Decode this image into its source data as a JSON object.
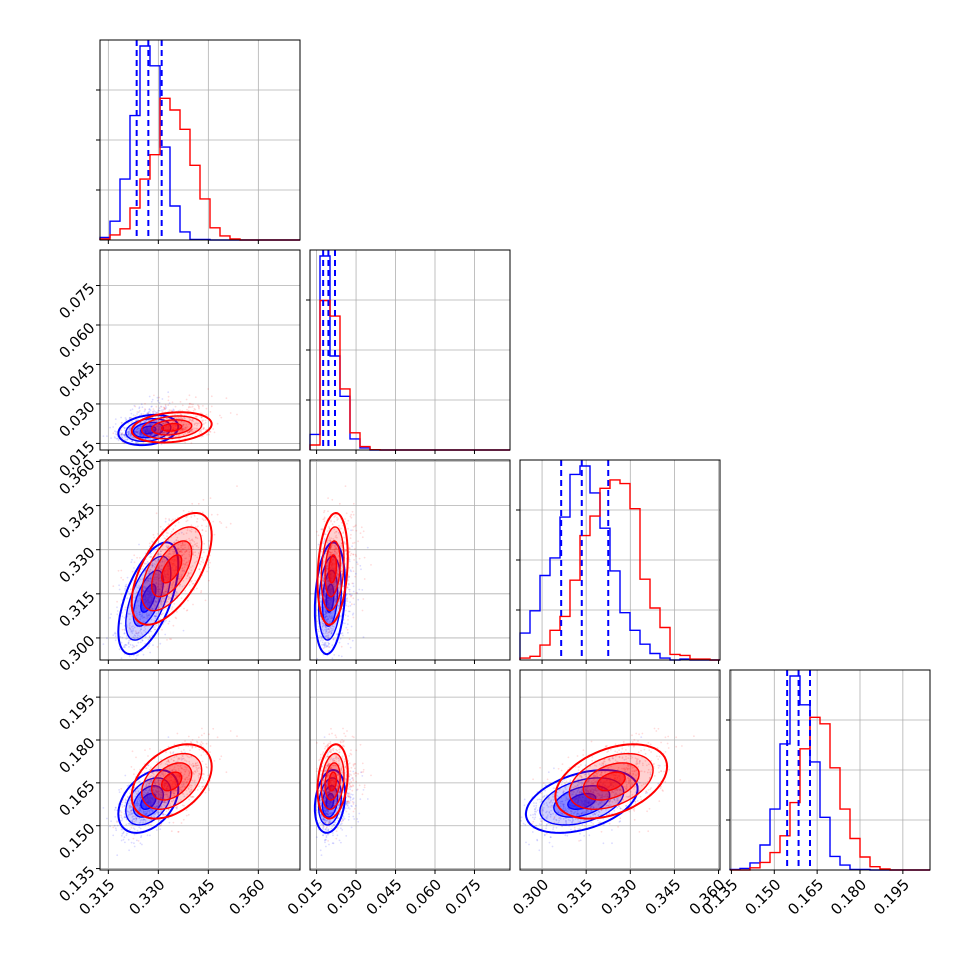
{
  "chart_data": {
    "type": "corner",
    "parameters": 4,
    "series": [
      {
        "name": "",
        "color": "#0000ff",
        "means": [
          0.327,
          0.0195,
          0.3135,
          0.1585
        ],
        "sigmas": [
          0.0045,
          0.0025,
          0.0095,
          0.0055
        ],
        "correlations": {
          "1-0": 0.25,
          "2-0": 0.6,
          "2-1": 0.25,
          "3-0": 0.4,
          "3-1": 0.2,
          "3-2": 0.4
        },
        "quantiles": [
          [
            0.3235,
            0.327,
            0.331
          ],
          [
            0.0175,
            0.0195,
            0.022
          ],
          [
            0.3065,
            0.3135,
            0.3225
          ],
          [
            0.1545,
            0.1585,
            0.1625
          ]
        ]
      },
      {
        "name": "",
        "color": "#ff0000",
        "means": [
          0.334,
          0.0205,
          0.3235,
          0.1655
        ],
        "sigmas": [
          0.006,
          0.0025,
          0.0095,
          0.0065
        ],
        "correlations": {
          "1-0": 0.25,
          "2-0": 0.6,
          "2-1": 0.25,
          "3-0": 0.4,
          "3-1": 0.2,
          "3-2": 0.4
        },
        "quantiles": []
      }
    ],
    "axes": [
      {
        "range": [
          0.3125,
          0.3725
        ],
        "ticks": [
          "0.315",
          "0.330",
          "0.345",
          "0.360"
        ],
        "tick_values": [
          0.315,
          0.33,
          0.345,
          0.36
        ]
      },
      {
        "range": [
          0.0125,
          0.0885
        ],
        "ticks": [
          "0.015",
          "0.030",
          "0.045",
          "0.060",
          "0.075"
        ],
        "tick_values": [
          0.015,
          0.03,
          0.045,
          0.06,
          0.075
        ]
      },
      {
        "range": [
          0.2925,
          0.3605
        ],
        "ticks": [
          "0.300",
          "0.315",
          "0.330",
          "0.345",
          "0.360"
        ],
        "tick_values": [
          0.3,
          0.315,
          0.33,
          0.345,
          0.36
        ]
      },
      {
        "range": [
          0.1345,
          0.2045
        ],
        "ticks": [
          "0.135",
          "0.150",
          "0.165",
          "0.180",
          "0.195"
        ],
        "tick_values": [
          0.135,
          0.15,
          0.165,
          0.18,
          0.195
        ]
      }
    ],
    "grid": true,
    "legend": "none"
  }
}
